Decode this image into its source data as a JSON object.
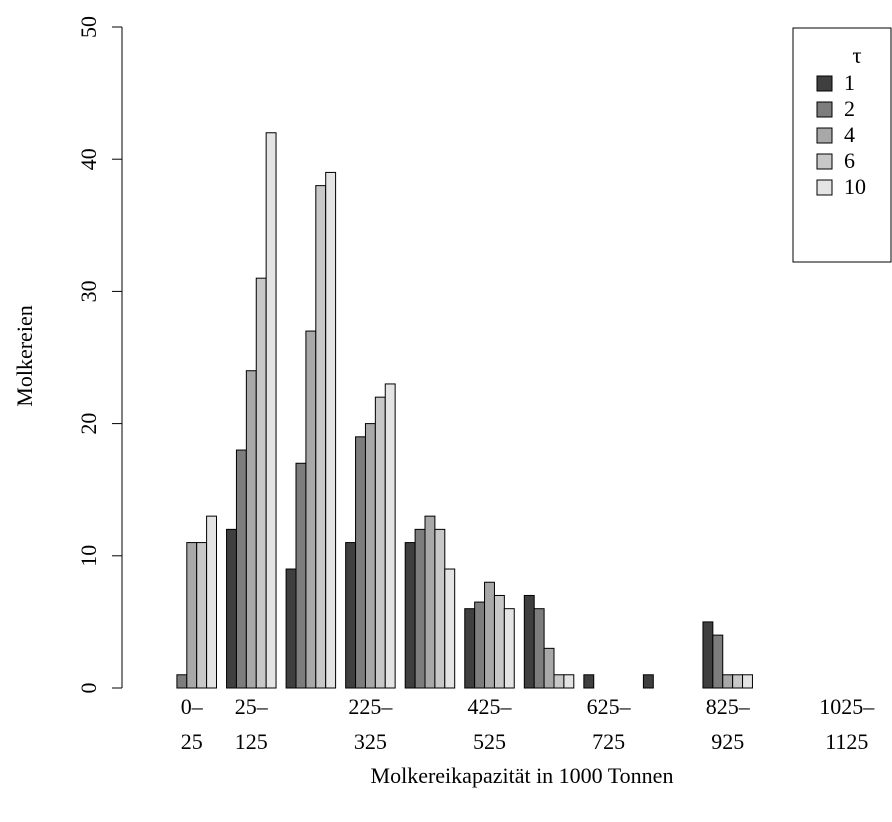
{
  "chart_data": {
    "type": "bar",
    "xlabel": "Molkereikapazität in 1000 Tonnen",
    "ylabel": "Molkereien",
    "ylim": [
      0,
      50
    ],
    "yticks": [
      "0",
      "10",
      "20",
      "30",
      "40",
      "50"
    ],
    "category_labels": [
      [
        "0–",
        "25"
      ],
      [
        "25–",
        "125"
      ],
      [
        "",
        ""
      ],
      [
        "225–",
        "325"
      ],
      [
        "",
        ""
      ],
      [
        "425–",
        "525"
      ],
      [
        "",
        ""
      ],
      [
        "625–",
        "725"
      ],
      [
        "",
        ""
      ],
      [
        "825–",
        "925"
      ],
      [
        "",
        ""
      ],
      [
        "1025–",
        "1125"
      ]
    ],
    "legend": {
      "title": "τ",
      "position": "top-right"
    },
    "series": [
      {
        "name": "1",
        "color": "#3f3f3f",
        "values": [
          0,
          12,
          9,
          11,
          11,
          6,
          7,
          1,
          1,
          5,
          0,
          0
        ]
      },
      {
        "name": "2",
        "color": "#7d7d7d",
        "values": [
          1,
          18,
          17,
          19,
          12,
          6.5,
          6,
          0,
          0,
          4,
          0,
          0
        ]
      },
      {
        "name": "4",
        "color": "#a8a8a8",
        "values": [
          11,
          24,
          27,
          20,
          13,
          8,
          3,
          0,
          0,
          1,
          0,
          0
        ]
      },
      {
        "name": "6",
        "color": "#c8c8c8",
        "values": [
          11,
          31,
          38,
          22,
          12,
          7,
          1,
          0,
          0,
          1,
          0,
          0
        ]
      },
      {
        "name": "10",
        "color": "#e4e4e4",
        "values": [
          13,
          42,
          39,
          23,
          9,
          6,
          1,
          0,
          0,
          1,
          0,
          0
        ]
      }
    ]
  }
}
